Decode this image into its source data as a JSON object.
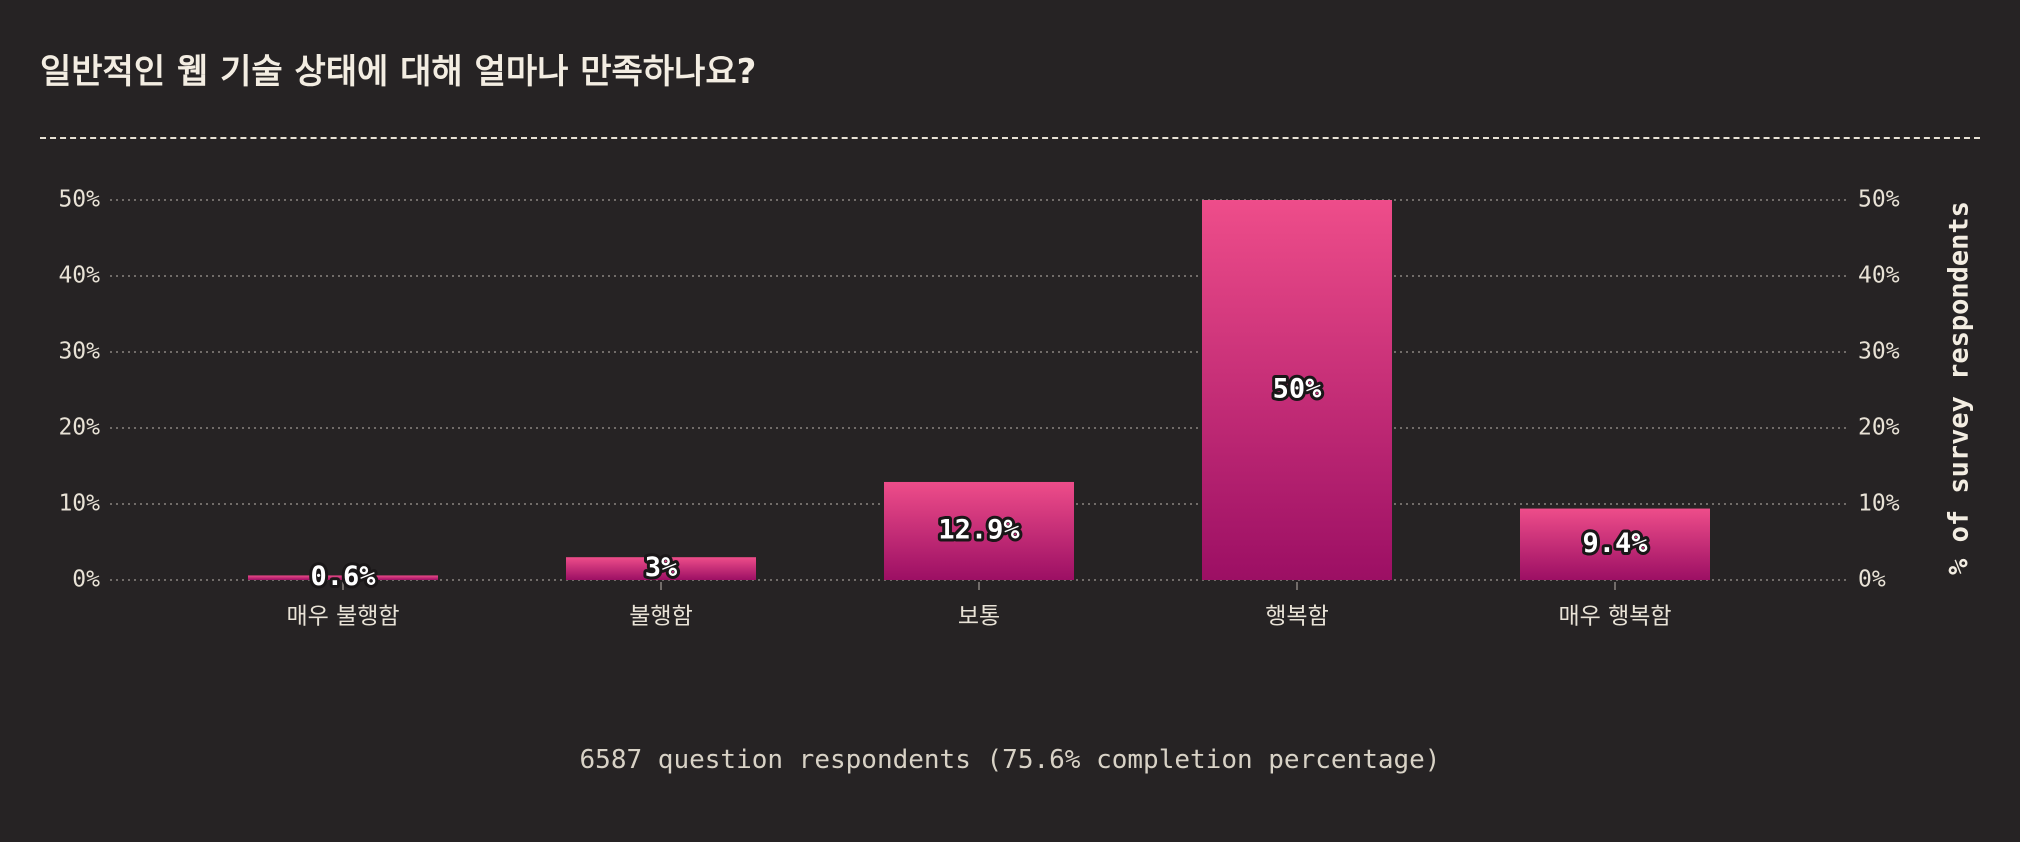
{
  "page": {
    "title": "일반적인 웹 기술 상태에 대해 얼마나 만족하나요?",
    "footer": "6587 question respondents (75.6% completion percentage)"
  },
  "chart_data": {
    "type": "bar",
    "categories": [
      "매우 불행함",
      "불행함",
      "보통",
      "행복함",
      "매우 행복함"
    ],
    "values": [
      0.6,
      3,
      12.9,
      50,
      9.4
    ],
    "value_labels": [
      "0.6%",
      "3%",
      "12.9%",
      "50%",
      "9.4%"
    ],
    "ylabel": "% of survey respondents",
    "ylim": [
      0,
      50
    ],
    "yticks": [
      "0%",
      "10%",
      "20%",
      "30%",
      "40%",
      "50%"
    ],
    "grid": true,
    "colors": {
      "bar_top": "#ee4d8a",
      "bar_bottom": "#9c0f64",
      "background": "#262324",
      "text": "#e8e2d6"
    }
  }
}
